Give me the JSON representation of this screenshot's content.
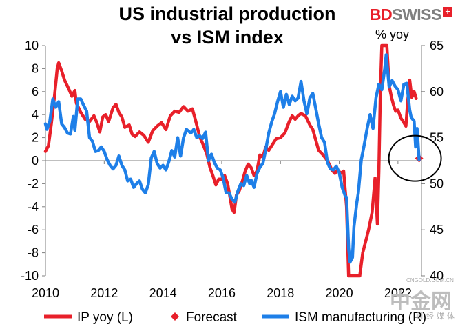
{
  "chart_data": {
    "type": "line",
    "title_line1": "US industrial production",
    "title_line2": "vs ISM index",
    "right_axis_unit": "% yoy",
    "brand": {
      "bd": "BD",
      "swiss": "SWISS",
      "plus": "+"
    },
    "left_axis": {
      "ylim": [
        -10,
        10
      ],
      "ticks": [
        "10",
        "8",
        "6",
        "4",
        "2",
        "0",
        "-2",
        "-4",
        "-6",
        "-8",
        "-10"
      ]
    },
    "right_axis": {
      "ylim": [
        40,
        65
      ],
      "ticks": [
        "65",
        "60",
        "55",
        "50",
        "45",
        "40"
      ]
    },
    "x_axis": {
      "range": [
        2010,
        2022.8
      ],
      "ticks": [
        "2010",
        "2012",
        "2014",
        "2016",
        "2018",
        "2020",
        "2022"
      ]
    },
    "colors": {
      "ip": "#e8202a",
      "ism": "#1e7fe8",
      "forecast": "#e8202a",
      "circle": "#000000"
    },
    "series": [
      {
        "name": "IP yoy (L)",
        "axis": "left",
        "points": [
          [
            2010.0,
            0.8
          ],
          [
            2010.1,
            1.3
          ],
          [
            2010.2,
            3.2
          ],
          [
            2010.3,
            5.4
          ],
          [
            2010.4,
            8.0
          ],
          [
            2010.45,
            8.5
          ],
          [
            2010.55,
            7.8
          ],
          [
            2010.65,
            7.0
          ],
          [
            2010.8,
            6.2
          ],
          [
            2010.9,
            5.6
          ],
          [
            2011.0,
            6.1
          ],
          [
            2011.05,
            5.0
          ],
          [
            2011.2,
            4.2
          ],
          [
            2011.35,
            3.6
          ],
          [
            2011.5,
            3.4
          ],
          [
            2011.65,
            3.9
          ],
          [
            2011.75,
            3.3
          ],
          [
            2011.85,
            2.5
          ],
          [
            2011.95,
            3.8
          ],
          [
            2012.05,
            4.0
          ],
          [
            2012.15,
            3.4
          ],
          [
            2012.3,
            4.6
          ],
          [
            2012.4,
            4.9
          ],
          [
            2012.5,
            4.2
          ],
          [
            2012.6,
            3.8
          ],
          [
            2012.7,
            2.9
          ],
          [
            2012.85,
            3.1
          ],
          [
            2012.95,
            2.3
          ],
          [
            2013.05,
            2.1
          ],
          [
            2013.2,
            2.5
          ],
          [
            2013.35,
            2.2
          ],
          [
            2013.5,
            1.6
          ],
          [
            2013.65,
            2.6
          ],
          [
            2013.8,
            3.0
          ],
          [
            2013.95,
            3.3
          ],
          [
            2014.1,
            2.7
          ],
          [
            2014.25,
            3.9
          ],
          [
            2014.4,
            4.3
          ],
          [
            2014.55,
            4.2
          ],
          [
            2014.7,
            4.7
          ],
          [
            2014.85,
            4.3
          ],
          [
            2015.0,
            4.5
          ],
          [
            2015.1,
            3.6
          ],
          [
            2015.25,
            2.1
          ],
          [
            2015.4,
            1.2
          ],
          [
            2015.5,
            0.5
          ],
          [
            2015.6,
            -0.6
          ],
          [
            2015.7,
            -1.3
          ],
          [
            2015.8,
            -2.1
          ],
          [
            2015.9,
            -1.6
          ],
          [
            2016.0,
            -1.6
          ],
          [
            2016.1,
            -1.3
          ],
          [
            2016.2,
            -2.0
          ],
          [
            2016.27,
            -3.0
          ],
          [
            2016.35,
            -4.2
          ],
          [
            2016.42,
            -4.5
          ],
          [
            2016.5,
            -3.0
          ],
          [
            2016.6,
            -2.6
          ],
          [
            2016.7,
            -1.8
          ],
          [
            2016.8,
            -0.9
          ],
          [
            2016.9,
            -0.3
          ],
          [
            2017.0,
            -0.6
          ],
          [
            2017.1,
            -1.3
          ],
          [
            2017.2,
            -0.9
          ],
          [
            2017.3,
            0.5
          ],
          [
            2017.4,
            0.3
          ],
          [
            2017.5,
            1.2
          ],
          [
            2017.6,
            0.9
          ],
          [
            2017.7,
            1.3
          ],
          [
            2017.85,
            1.9
          ],
          [
            2018.0,
            2.0
          ],
          [
            2018.15,
            2.4
          ],
          [
            2018.3,
            3.4
          ],
          [
            2018.4,
            3.9
          ],
          [
            2018.5,
            3.6
          ],
          [
            2018.6,
            3.9
          ],
          [
            2018.7,
            4.1
          ],
          [
            2018.85,
            3.9
          ],
          [
            2019.0,
            3.1
          ],
          [
            2019.1,
            2.7
          ],
          [
            2019.2,
            1.8
          ],
          [
            2019.3,
            0.9
          ],
          [
            2019.45,
            0.5
          ],
          [
            2019.6,
            0.0
          ],
          [
            2019.75,
            -0.8
          ],
          [
            2019.85,
            -1.1
          ],
          [
            2019.95,
            -0.8
          ],
          [
            2020.05,
            -1.1
          ],
          [
            2020.15,
            -0.9
          ],
          [
            2020.25,
            -4.0
          ],
          [
            2020.32,
            -10.0
          ],
          [
            2020.37,
            -10.0
          ],
          [
            2020.45,
            -10.0
          ],
          [
            2020.55,
            -10.0
          ],
          [
            2020.62,
            -10.0
          ],
          [
            2020.7,
            -10.0
          ],
          [
            2020.8,
            -8.0
          ],
          [
            2020.9,
            -7.0
          ],
          [
            2021.0,
            -6.0
          ],
          [
            2021.12,
            -4.5
          ],
          [
            2021.22,
            -1.5
          ],
          [
            2021.3,
            -5.5
          ],
          [
            2021.35,
            -1.0
          ],
          [
            2021.4,
            6.0
          ],
          [
            2021.45,
            10.0
          ],
          [
            2021.55,
            10.0
          ],
          [
            2021.62,
            10.0
          ],
          [
            2021.7,
            6.5
          ],
          [
            2021.78,
            5.5
          ],
          [
            2021.85,
            4.8
          ],
          [
            2021.92,
            4.3
          ],
          [
            2022.0,
            4.4
          ],
          [
            2022.1,
            3.7
          ],
          [
            2022.2,
            3.3
          ],
          [
            2022.27,
            3.0
          ],
          [
            2022.33,
            5.2
          ],
          [
            2022.4,
            7.0
          ],
          [
            2022.47,
            5.5
          ],
          [
            2022.55,
            6.0
          ],
          [
            2022.62,
            5.4
          ]
        ]
      },
      {
        "name": "Forecast",
        "axis": "left",
        "points": [
          [
            2022.72,
            0.2
          ]
        ]
      },
      {
        "name": "ISM manufacturing (R)",
        "axis": "right",
        "points": [
          [
            2010.0,
            56.5
          ],
          [
            2010.05,
            55.9
          ],
          [
            2010.15,
            56.8
          ],
          [
            2010.25,
            59.2
          ],
          [
            2010.35,
            58.3
          ],
          [
            2010.45,
            58.9
          ],
          [
            2010.55,
            56.5
          ],
          [
            2010.65,
            56.1
          ],
          [
            2010.75,
            55.5
          ],
          [
            2010.85,
            55.4
          ],
          [
            2010.95,
            57.3
          ],
          [
            2011.0,
            55.8
          ],
          [
            2011.1,
            59.2
          ],
          [
            2011.2,
            59.2
          ],
          [
            2011.3,
            58.5
          ],
          [
            2011.4,
            57.9
          ],
          [
            2011.5,
            55.0
          ],
          [
            2011.6,
            54.6
          ],
          [
            2011.7,
            53.5
          ],
          [
            2011.8,
            53.6
          ],
          [
            2011.9,
            54.0
          ],
          [
            2012.0,
            53.5
          ],
          [
            2012.1,
            52.6
          ],
          [
            2012.2,
            52.0
          ],
          [
            2012.3,
            51.6
          ],
          [
            2012.4,
            52.0
          ],
          [
            2012.5,
            53.0
          ],
          [
            2012.6,
            52.0
          ],
          [
            2012.7,
            51.5
          ],
          [
            2012.8,
            50.3
          ],
          [
            2012.9,
            50.5
          ],
          [
            2013.0,
            49.6
          ],
          [
            2013.1,
            50.0
          ],
          [
            2013.2,
            50.3
          ],
          [
            2013.3,
            49.4
          ],
          [
            2013.4,
            49.0
          ],
          [
            2013.5,
            49.9
          ],
          [
            2013.6,
            52.8
          ],
          [
            2013.7,
            53.5
          ],
          [
            2013.8,
            52.2
          ],
          [
            2013.9,
            51.7
          ],
          [
            2014.0,
            52.0
          ],
          [
            2014.1,
            51.5
          ],
          [
            2014.2,
            52.4
          ],
          [
            2014.3,
            53.6
          ],
          [
            2014.4,
            52.9
          ],
          [
            2014.5,
            55.0
          ],
          [
            2014.6,
            53.0
          ],
          [
            2014.7,
            55.0
          ],
          [
            2014.8,
            55.9
          ],
          [
            2014.95,
            55.5
          ],
          [
            2015.05,
            55.9
          ],
          [
            2015.15,
            55.0
          ],
          [
            2015.25,
            55.2
          ],
          [
            2015.35,
            54.9
          ],
          [
            2015.45,
            55.6
          ],
          [
            2015.55,
            52.5
          ],
          [
            2015.65,
            53.2
          ],
          [
            2015.75,
            52.3
          ],
          [
            2015.85,
            51.7
          ],
          [
            2015.95,
            51.5
          ],
          [
            2016.05,
            50.6
          ],
          [
            2016.15,
            49.0
          ],
          [
            2016.25,
            49.0
          ],
          [
            2016.35,
            48.3
          ],
          [
            2016.45,
            48.0
          ],
          [
            2016.55,
            49.2
          ],
          [
            2016.65,
            50.0
          ],
          [
            2016.75,
            49.8
          ],
          [
            2016.85,
            50.9
          ],
          [
            2016.95,
            50.0
          ],
          [
            2017.0,
            50.4
          ],
          [
            2017.1,
            49.6
          ],
          [
            2017.2,
            51.1
          ],
          [
            2017.3,
            51.8
          ],
          [
            2017.4,
            52.2
          ],
          [
            2017.5,
            53.7
          ],
          [
            2017.6,
            55.5
          ],
          [
            2017.7,
            56.7
          ],
          [
            2017.8,
            57.6
          ],
          [
            2017.9,
            58.9
          ],
          [
            2018.0,
            60.0
          ],
          [
            2018.1,
            58.3
          ],
          [
            2018.2,
            59.7
          ],
          [
            2018.3,
            58.6
          ],
          [
            2018.4,
            59.5
          ],
          [
            2018.5,
            59.0
          ],
          [
            2018.6,
            59.3
          ],
          [
            2018.7,
            61.1
          ],
          [
            2018.8,
            59.0
          ],
          [
            2018.9,
            57.6
          ],
          [
            2019.0,
            59.3
          ],
          [
            2019.1,
            59.8
          ],
          [
            2019.2,
            58.2
          ],
          [
            2019.3,
            56.5
          ],
          [
            2019.4,
            55.0
          ],
          [
            2019.5,
            54.5
          ],
          [
            2019.6,
            52.3
          ],
          [
            2019.7,
            51.6
          ],
          [
            2019.8,
            51.5
          ],
          [
            2019.9,
            51.9
          ],
          [
            2020.0,
            51.2
          ],
          [
            2020.1,
            49.6
          ],
          [
            2020.2,
            48.7
          ],
          [
            2020.25,
            48.5
          ],
          [
            2020.32,
            43.0
          ],
          [
            2020.37,
            41.5
          ],
          [
            2020.45,
            42.0
          ],
          [
            2020.5,
            45.3
          ],
          [
            2020.6,
            48.0
          ],
          [
            2020.65,
            49.0
          ],
          [
            2020.75,
            52.6
          ],
          [
            2020.85,
            54.2
          ],
          [
            2020.95,
            56.0
          ],
          [
            2021.05,
            57.5
          ],
          [
            2021.15,
            56.0
          ],
          [
            2021.25,
            59.3
          ],
          [
            2021.35,
            60.8
          ],
          [
            2021.45,
            60.2
          ],
          [
            2021.55,
            62.5
          ],
          [
            2021.6,
            64.0
          ],
          [
            2021.7,
            60.5
          ],
          [
            2021.8,
            61.2
          ],
          [
            2021.9,
            60.6
          ],
          [
            2022.0,
            60.2
          ],
          [
            2022.1,
            59.0
          ],
          [
            2022.2,
            60.8
          ],
          [
            2022.3,
            60.9
          ],
          [
            2022.4,
            58.0
          ],
          [
            2022.45,
            57.2
          ],
          [
            2022.55,
            56.8
          ],
          [
            2022.6,
            54.0
          ],
          [
            2022.65,
            56.0
          ],
          [
            2022.72,
            52.6
          ]
        ]
      }
    ],
    "legend": [
      {
        "label": "IP yoy (L)",
        "style": "line",
        "color": "#e8202a"
      },
      {
        "label": "Forecast",
        "style": "diamond",
        "color": "#e8202a"
      },
      {
        "label": "ISM manufacturing (R)",
        "style": "line",
        "color": "#1e7fe8"
      }
    ],
    "annotation": "circle-around-latest"
  },
  "watermark": {
    "cn": "中金网",
    "url": "CNGOLD.COM.CN",
    "sub": "财经媒体"
  }
}
